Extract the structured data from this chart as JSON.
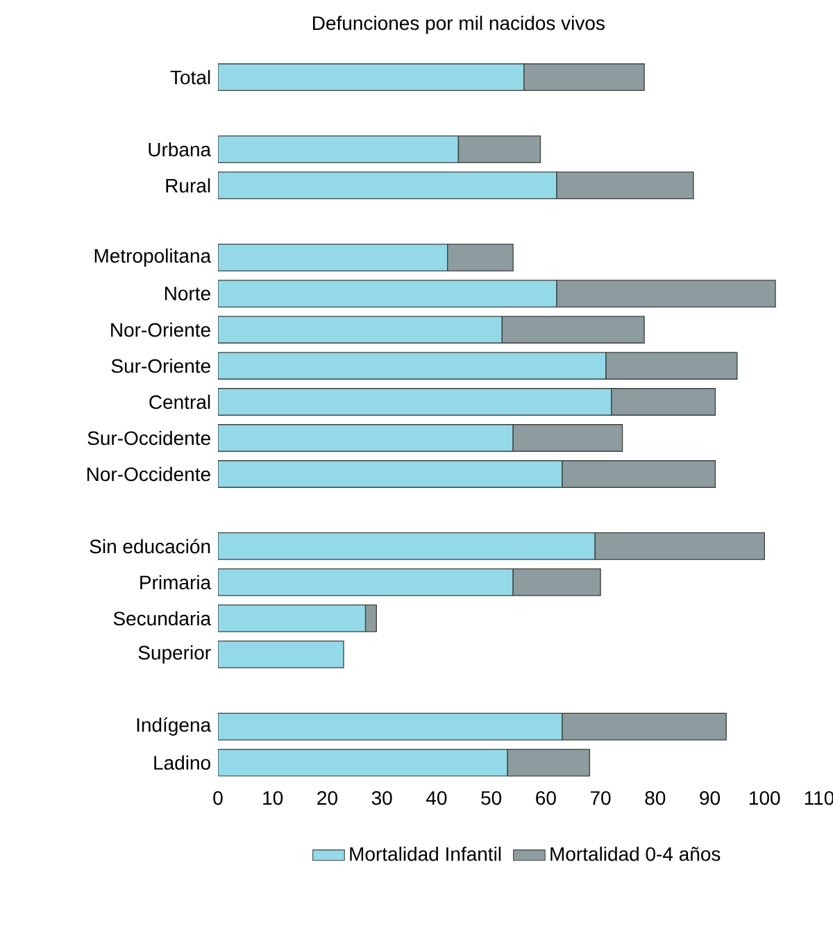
{
  "chart_data": {
    "type": "bar",
    "orientation": "horizontal",
    "stacked": true,
    "title": "Defunciones por mil nacidos vivos",
    "categories": [
      "Total",
      null,
      "Urbana",
      "Rural",
      null,
      "Metropolitana",
      "Norte",
      "Nor-Oriente",
      "Sur-Oriente",
      "Central",
      "Sur-Occidente",
      "Nor-Occidente",
      null,
      "Sin educación",
      "Primaria",
      "Secundaria",
      "Superior",
      null,
      "Indígena",
      "Ladino"
    ],
    "series": [
      {
        "name": "Mortalidad Infantil",
        "color": "#93d9e8",
        "values": [
          56,
          null,
          44,
          62,
          null,
          42,
          62,
          52,
          71,
          72,
          54,
          63,
          null,
          69,
          54,
          27,
          23,
          null,
          63,
          53
        ]
      },
      {
        "name": "Mortalidad 0-4 años",
        "color": "#8c9c9f",
        "values": [
          22,
          null,
          15,
          25,
          null,
          12,
          40,
          26,
          24,
          19,
          20,
          28,
          null,
          31,
          16,
          2,
          null,
          null,
          30,
          15
        ]
      }
    ],
    "xlim": [
      0,
      110
    ],
    "xticks": [
      0,
      10,
      20,
      30,
      40,
      50,
      60,
      70,
      80,
      90,
      100,
      110
    ],
    "grid": false,
    "legend": "bottom"
  }
}
